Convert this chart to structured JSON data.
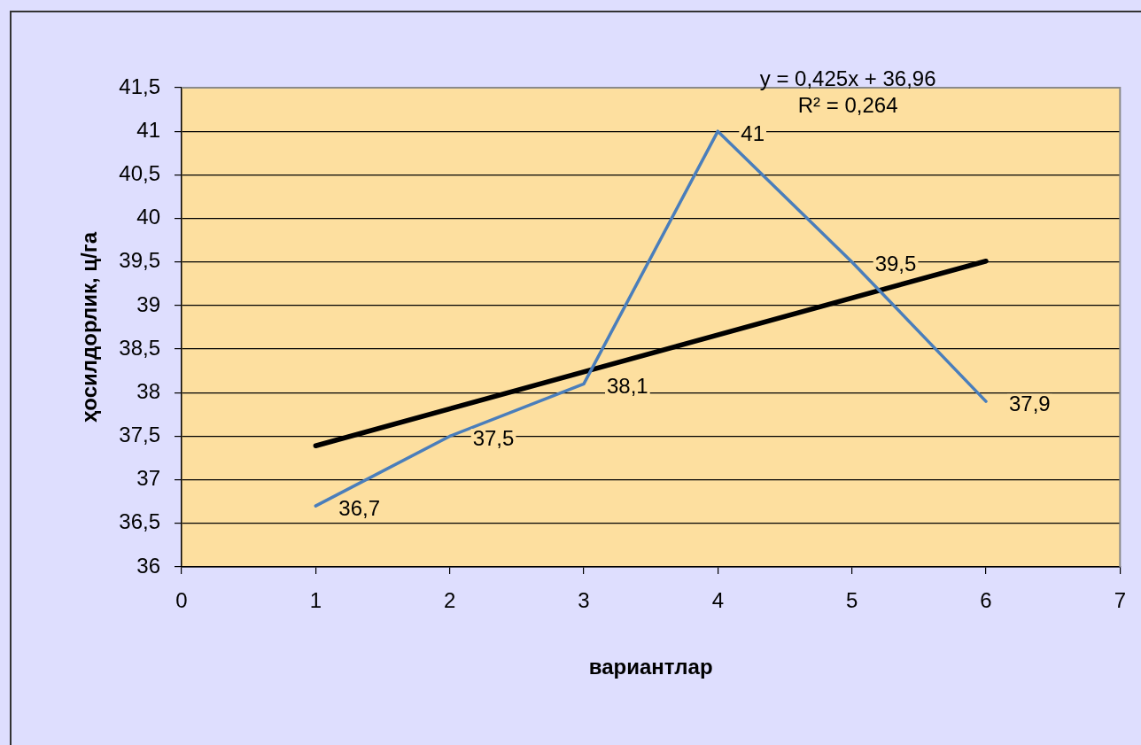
{
  "chart_data": {
    "type": "line",
    "xlabel": "вариантлар",
    "ylabel": "ҳосилдорлик, ц/га",
    "xlim": [
      0,
      7
    ],
    "xticks": [
      0,
      1,
      2,
      3,
      4,
      5,
      6,
      7
    ],
    "ylim": [
      36,
      41.5
    ],
    "yticks": [
      36,
      {
        "value": 36.5,
        "label": "36,5"
      },
      37,
      {
        "value": 37.5,
        "label": "37,5"
      },
      38,
      {
        "value": 38.5,
        "label": "38,5"
      },
      39,
      {
        "value": 39.5,
        "label": "39,5"
      },
      40,
      {
        "value": 40.5,
        "label": "40,5"
      },
      41,
      {
        "value": 41.5,
        "label": "41,5"
      }
    ],
    "grid": "y",
    "marker": "none",
    "annotations": [
      "y = 0,425x + 36,96",
      "R² = 0,264"
    ],
    "series": [
      {
        "color": "#4a7ebb",
        "x": [
          1,
          2,
          3,
          4,
          5,
          6
        ],
        "values": [
          36.7,
          37.5,
          38.1,
          41,
          39.5,
          37.9
        ],
        "value_labels": [
          "36,7",
          "37,5",
          "38,1",
          "41",
          "39,5",
          "37,9"
        ]
      },
      {
        "type": "line",
        "color": "#000000",
        "x": [
          1,
          6
        ],
        "values": [
          37.39,
          39.51
        ]
      }
    ]
  }
}
